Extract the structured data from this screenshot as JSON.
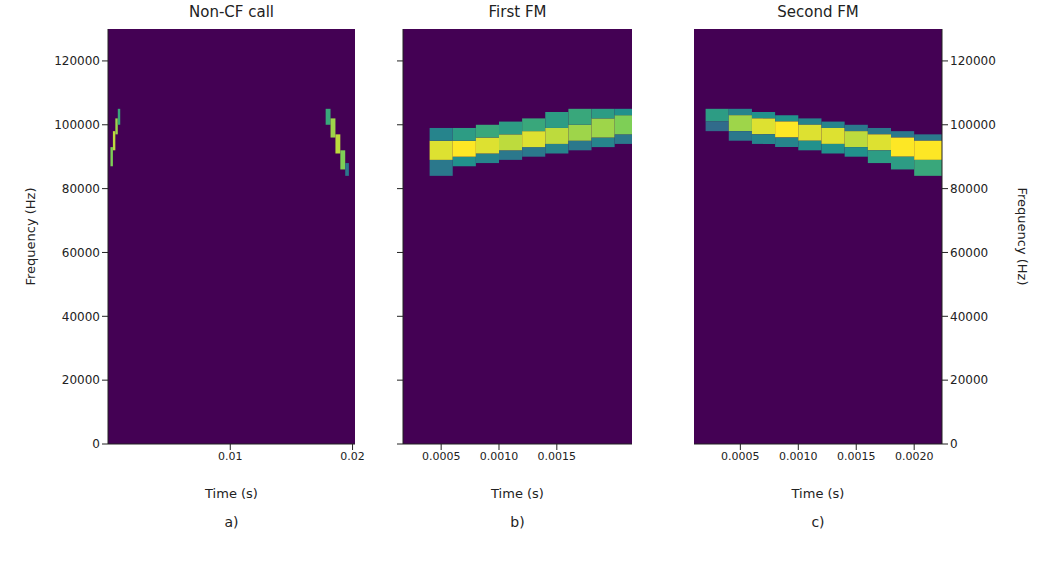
{
  "chart_data": [
    {
      "type": "heatmap",
      "title": "Non-CF call",
      "x_label": "Time (s)",
      "y_label": "Frequency (Hz)",
      "panel_label": "a)",
      "xlim": [
        0,
        0.0202
      ],
      "xticks": [
        0.01,
        0.02
      ],
      "ylim": [
        0,
        130000
      ],
      "yticks": [
        0,
        20000,
        40000,
        60000,
        80000,
        100000,
        120000
      ],
      "cells": [
        [
          0.0002,
          0.0004,
          87000,
          93000,
          0.8
        ],
        [
          0.0004,
          0.0006,
          92000,
          98000,
          0.9
        ],
        [
          0.0006,
          0.0008,
          97000,
          102000,
          0.85
        ],
        [
          0.0008,
          0.001,
          100000,
          105000,
          0.6
        ],
        [
          0.0178,
          0.0182,
          100000,
          105000,
          0.6
        ],
        [
          0.0182,
          0.0186,
          96000,
          102000,
          0.85
        ],
        [
          0.0186,
          0.019,
          91000,
          97000,
          0.9
        ],
        [
          0.019,
          0.0194,
          86000,
          92000,
          0.8
        ],
        [
          0.0194,
          0.0197,
          84000,
          88000,
          0.4
        ]
      ]
    },
    {
      "type": "heatmap",
      "title": "First FM",
      "x_label": "Time (s)",
      "panel_label": "b)",
      "tick_labels": "x",
      "xlim": [
        0.00017,
        0.00215
      ],
      "xticks": [
        0.0005,
        {
          "value": 0.001,
          "label": "0.0010"
        },
        0.0015
      ],
      "ylim": [
        0,
        130000
      ],
      "yticks": [
        0,
        20000,
        40000,
        60000,
        80000,
        100000,
        120000
      ],
      "cells": [
        [
          0.0004,
          0.0006,
          84000,
          89000,
          0.4
        ],
        [
          0.0004,
          0.0006,
          89000,
          95000,
          0.95
        ],
        [
          0.0004,
          0.0006,
          95000,
          99000,
          0.45
        ],
        [
          0.0006,
          0.0008,
          87000,
          90000,
          0.5
        ],
        [
          0.0006,
          0.0008,
          90000,
          95000,
          1.0
        ],
        [
          0.0006,
          0.0008,
          95000,
          99000,
          0.55
        ],
        [
          0.0008,
          0.001,
          88000,
          91000,
          0.45
        ],
        [
          0.0008,
          0.001,
          91000,
          96000,
          0.95
        ],
        [
          0.0008,
          0.001,
          96000,
          100000,
          0.6
        ],
        [
          0.001,
          0.0012,
          89000,
          92000,
          0.4
        ],
        [
          0.001,
          0.0012,
          92000,
          97000,
          0.9
        ],
        [
          0.001,
          0.0012,
          97000,
          101000,
          0.55
        ],
        [
          0.0012,
          0.0014,
          90000,
          93000,
          0.4
        ],
        [
          0.0012,
          0.0014,
          93000,
          98000,
          0.95
        ],
        [
          0.0012,
          0.0014,
          98000,
          102000,
          0.6
        ],
        [
          0.0014,
          0.0016,
          91000,
          94000,
          0.45
        ],
        [
          0.0014,
          0.0016,
          94000,
          99000,
          0.9
        ],
        [
          0.0014,
          0.0016,
          99000,
          104000,
          0.55
        ],
        [
          0.0016,
          0.0018,
          92000,
          95000,
          0.4
        ],
        [
          0.0016,
          0.0018,
          95000,
          100000,
          0.85
        ],
        [
          0.0016,
          0.0018,
          100000,
          105000,
          0.6
        ],
        [
          0.0018,
          0.002,
          93000,
          96000,
          0.45
        ],
        [
          0.0018,
          0.002,
          96000,
          102000,
          0.85
        ],
        [
          0.0018,
          0.002,
          102000,
          105000,
          0.55
        ],
        [
          0.002,
          0.00215,
          94000,
          97000,
          0.4
        ],
        [
          0.002,
          0.00215,
          97000,
          103000,
          0.8
        ],
        [
          0.002,
          0.00215,
          103000,
          105000,
          0.5
        ]
      ]
    },
    {
      "type": "heatmap",
      "title": "Second FM",
      "x_label": "Time (s)",
      "y_label": "Frequency (Hz)",
      "panel_label": "c)",
      "xlim": [
        0.0001,
        0.00224
      ],
      "xticks": [
        0.0005,
        {
          "value": 0.001,
          "label": "0.0010"
        },
        0.0015,
        {
          "value": 0.002,
          "label": "0.0020"
        }
      ],
      "ylim": [
        0,
        130000
      ],
      "yticks": [
        0,
        20000,
        40000,
        60000,
        80000,
        100000,
        120000
      ],
      "cells": [
        [
          0.0002,
          0.0004,
          101000,
          105000,
          0.55
        ],
        [
          0.0002,
          0.0004,
          98000,
          101000,
          0.35
        ],
        [
          0.0004,
          0.0006,
          103000,
          105000,
          0.45
        ],
        [
          0.0004,
          0.0006,
          98000,
          103000,
          0.85
        ],
        [
          0.0004,
          0.0006,
          95000,
          98000,
          0.4
        ],
        [
          0.0006,
          0.0008,
          102000,
          104000,
          0.5
        ],
        [
          0.0006,
          0.0008,
          97000,
          102000,
          0.95
        ],
        [
          0.0006,
          0.0008,
          94000,
          97000,
          0.45
        ],
        [
          0.0008,
          0.001,
          101000,
          103000,
          0.5
        ],
        [
          0.0008,
          0.001,
          96000,
          101000,
          1.0
        ],
        [
          0.0008,
          0.001,
          93000,
          96000,
          0.45
        ],
        [
          0.001,
          0.0012,
          100000,
          102000,
          0.45
        ],
        [
          0.001,
          0.0012,
          95000,
          100000,
          0.95
        ],
        [
          0.001,
          0.0012,
          92000,
          95000,
          0.5
        ],
        [
          0.0012,
          0.0014,
          99000,
          101000,
          0.45
        ],
        [
          0.0012,
          0.0014,
          94000,
          99000,
          0.95
        ],
        [
          0.0012,
          0.0014,
          91000,
          94000,
          0.5
        ],
        [
          0.0014,
          0.0016,
          98000,
          100000,
          0.4
        ],
        [
          0.0014,
          0.0016,
          93000,
          98000,
          0.9
        ],
        [
          0.0014,
          0.0016,
          90000,
          93000,
          0.5
        ],
        [
          0.0016,
          0.0018,
          97000,
          99000,
          0.4
        ],
        [
          0.0016,
          0.0018,
          92000,
          97000,
          0.95
        ],
        [
          0.0016,
          0.0018,
          88000,
          92000,
          0.55
        ],
        [
          0.0018,
          0.002,
          96000,
          98000,
          0.4
        ],
        [
          0.0018,
          0.002,
          90000,
          96000,
          1.0
        ],
        [
          0.0018,
          0.002,
          86000,
          90000,
          0.55
        ],
        [
          0.002,
          0.00224,
          95000,
          97000,
          0.4
        ],
        [
          0.002,
          0.00224,
          89000,
          95000,
          1.0
        ],
        [
          0.002,
          0.00224,
          84000,
          89000,
          0.6
        ]
      ]
    }
  ]
}
